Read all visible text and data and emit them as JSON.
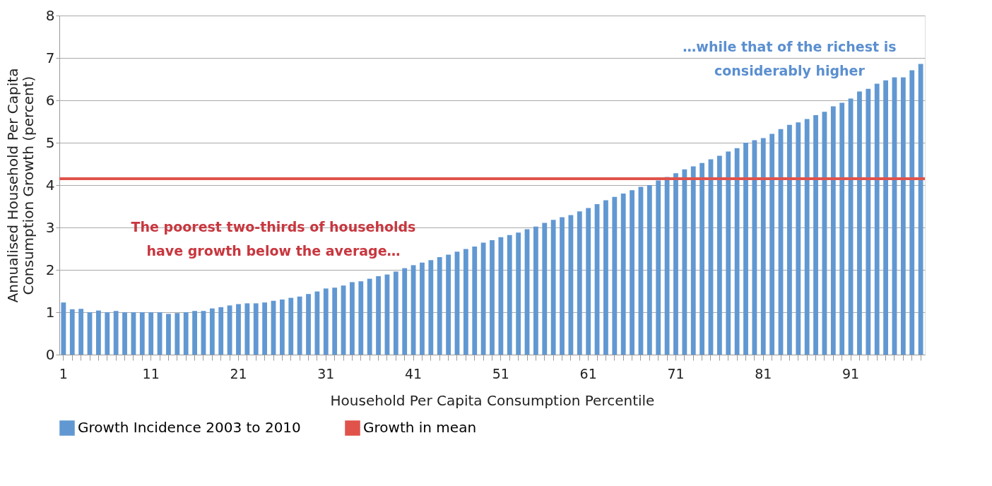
{
  "chart_data": {
    "type": "bar",
    "xlabel": "Household Per Capita Consumption Percentile",
    "ylabel": "Annualised Household Per Capita\nConsumption Growth (percent)",
    "categories": [
      "1",
      null,
      null,
      null,
      null,
      null,
      null,
      null,
      null,
      null,
      "11",
      null,
      null,
      null,
      null,
      null,
      null,
      null,
      null,
      null,
      "21",
      null,
      null,
      null,
      null,
      null,
      null,
      null,
      null,
      null,
      "31",
      null,
      null,
      null,
      null,
      null,
      null,
      null,
      null,
      null,
      "41",
      null,
      null,
      null,
      null,
      null,
      null,
      null,
      null,
      null,
      "51",
      null,
      null,
      null,
      null,
      null,
      null,
      null,
      null,
      null,
      "61",
      null,
      null,
      null,
      null,
      null,
      null,
      null,
      null,
      null,
      "71",
      null,
      null,
      null,
      null,
      null,
      null,
      null,
      null,
      null,
      "81",
      null,
      null,
      null,
      null,
      null,
      null,
      null,
      null,
      null,
      "91",
      null,
      null,
      null,
      null,
      null,
      null,
      null,
      null
    ],
    "series": [
      {
        "name": "Growth Incidence 2003 to 2010",
        "color": "#6198d2",
        "values": [
          1.23,
          1.07,
          1.08,
          1.0,
          1.04,
          1.0,
          1.03,
          1.0,
          1.0,
          1.0,
          1.0,
          1.0,
          0.96,
          0.98,
          1.0,
          1.03,
          1.03,
          1.09,
          1.12,
          1.16,
          1.19,
          1.21,
          1.21,
          1.23,
          1.27,
          1.3,
          1.34,
          1.37,
          1.43,
          1.49,
          1.56,
          1.58,
          1.63,
          1.71,
          1.73,
          1.79,
          1.85,
          1.89,
          1.96,
          2.04,
          2.11,
          2.17,
          2.23,
          2.3,
          2.36,
          2.43,
          2.49,
          2.55,
          2.64,
          2.7,
          2.77,
          2.82,
          2.88,
          2.96,
          3.02,
          3.11,
          3.18,
          3.24,
          3.29,
          3.38,
          3.46,
          3.55,
          3.64,
          3.72,
          3.8,
          3.88,
          3.96,
          4.0,
          4.11,
          4.19,
          4.28,
          4.37,
          4.44,
          4.52,
          4.61,
          4.69,
          4.79,
          4.87,
          5.0,
          5.06,
          5.11,
          5.21,
          5.32,
          5.42,
          5.48,
          5.56,
          5.65,
          5.73,
          5.86,
          5.94,
          6.04,
          6.21,
          6.27,
          6.39,
          6.47,
          6.54,
          6.54,
          6.71,
          6.86
        ]
      }
    ],
    "ref_lines": [
      {
        "axis": "y",
        "value": 4.15,
        "label": "Growth in mean",
        "color": "#e0534b",
        "line_style": "solid"
      }
    ],
    "ylim": [
      0,
      8
    ],
    "yticks": [
      0,
      1,
      2,
      3,
      4,
      5,
      6,
      7,
      8
    ],
    "grid": "y",
    "legend": "bottom",
    "annotations": [
      "The poorest two-thirds of households\nhave growth below the average…",
      "…while that of the richest is\nconsiderably higher"
    ]
  }
}
